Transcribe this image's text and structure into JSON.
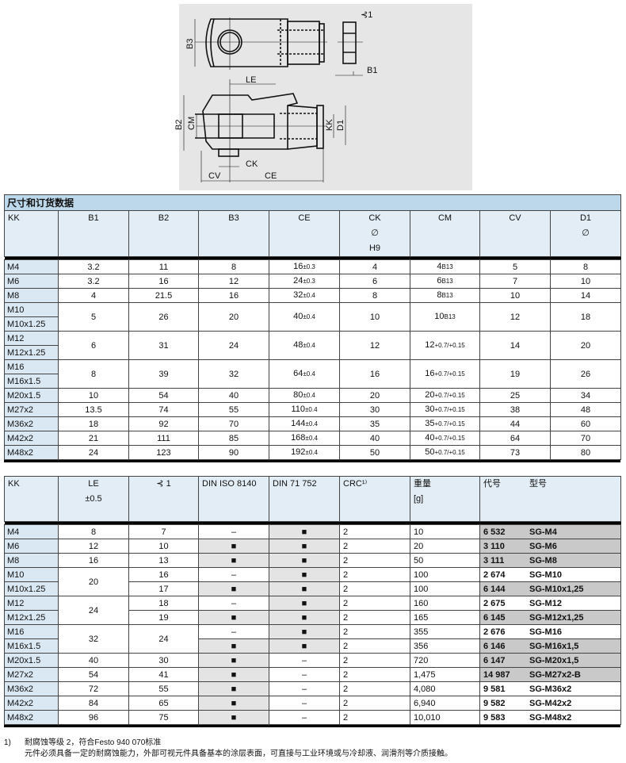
{
  "drawing": {
    "labels": {
      "b3": "B3",
      "b1": "B1",
      "sw": "⊰1",
      "le": "LE",
      "b2": "B2",
      "cm": "CM",
      "kk": "KK",
      "d1": "D1",
      "ck": "CK",
      "cv": "CV",
      "ce": "CE"
    },
    "background": "#e6e6e6"
  },
  "table1": {
    "title": "尺寸和订货数据",
    "headers": [
      [
        "KK"
      ],
      [
        "B1"
      ],
      [
        "B2"
      ],
      [
        "B3"
      ],
      [
        "CE"
      ],
      [
        "CK",
        "∅",
        "H9"
      ],
      [
        "CM"
      ],
      [
        "CV"
      ],
      [
        "D1",
        "∅"
      ]
    ],
    "rows": [
      [
        "M4",
        "3.2",
        "11",
        "8",
        [
          "16",
          "±0.3"
        ],
        "4",
        [
          "4",
          "B13"
        ],
        "5",
        "8"
      ],
      [
        "M6",
        "3.2",
        "16",
        "12",
        [
          "24",
          "±0.3"
        ],
        "6",
        [
          "6",
          "B13"
        ],
        "7",
        "10"
      ],
      [
        "M8",
        "4",
        "21.5",
        "16",
        [
          "32",
          "±0.4"
        ],
        "8",
        [
          "8",
          "B13"
        ],
        "10",
        "14"
      ],
      [
        "M10",
        "5",
        "26",
        "20",
        [
          "40",
          "±0.4"
        ],
        "10",
        [
          "10",
          "B13"
        ],
        "12",
        "18"
      ],
      [
        "M10x1.25",
        null,
        null,
        null,
        null,
        null,
        null,
        null,
        null
      ],
      [
        "M12",
        "6",
        "31",
        "24",
        [
          "48",
          "±0.4"
        ],
        "12",
        [
          "12",
          "+0.7/+0.15"
        ],
        "14",
        "20"
      ],
      [
        "M12x1.25",
        null,
        null,
        null,
        null,
        null,
        null,
        null,
        null
      ],
      [
        "M16",
        "8",
        "39",
        "32",
        [
          "64",
          "±0.4"
        ],
        "16",
        [
          "16",
          "+0.7/+0.15"
        ],
        "19",
        "26"
      ],
      [
        "M16x1.5",
        null,
        null,
        null,
        null,
        null,
        null,
        null,
        null
      ],
      [
        "M20x1.5",
        "10",
        "54",
        "40",
        [
          "80",
          "±0.4"
        ],
        "20",
        [
          "20",
          "+0.7/+0.15"
        ],
        "25",
        "34"
      ],
      [
        "M27x2",
        "13.5",
        "74",
        "55",
        [
          "110",
          "±0.4"
        ],
        "30",
        [
          "30",
          "+0.7/+0.15"
        ],
        "38",
        "48"
      ],
      [
        "M36x2",
        "18",
        "92",
        "70",
        [
          "144",
          "±0.4"
        ],
        "35",
        [
          "35",
          "+0.7/+0.15"
        ],
        "44",
        "60"
      ],
      [
        "M42x2",
        "21",
        "111",
        "85",
        [
          "168",
          "±0.4"
        ],
        "40",
        [
          "40",
          "+0.7/+0.15"
        ],
        "64",
        "70"
      ],
      [
        "M48x2",
        "24",
        "123",
        "90",
        [
          "192",
          "±0.4"
        ],
        "50",
        [
          "50",
          "+0.7/+0.15"
        ],
        "73",
        "80"
      ]
    ]
  },
  "table2": {
    "headers": [
      [
        "KK"
      ],
      [
        "LE",
        "",
        "±0.5"
      ],
      [
        "⊰ 1"
      ],
      [
        "DIN ISO 8140"
      ],
      [
        "DIN 71 752"
      ],
      [
        "CRC¹⁾"
      ],
      [
        "重量",
        "",
        "[g]"
      ],
      [
        "代号",
        "型号"
      ]
    ],
    "rows": [
      [
        "M4",
        "8",
        "7",
        "–",
        "■",
        "2",
        "10",
        "6 532",
        "SG-M4",
        true
      ],
      [
        "M6",
        "12",
        "10",
        "■",
        "■",
        "2",
        "20",
        "3 110",
        "SG-M6",
        true
      ],
      [
        "M8",
        "16",
        "13",
        "■",
        "■",
        "2",
        "50",
        "3 111",
        "SG-M8",
        true
      ],
      [
        "M10",
        "20",
        "16",
        "–",
        "■",
        "2",
        "100",
        "2 674",
        "SG-M10",
        false
      ],
      [
        "M10x1.25",
        null,
        "17",
        "■",
        "■",
        "2",
        "100",
        "6 144",
        "SG-M10x1,25",
        true
      ],
      [
        "M12",
        "24",
        "18",
        "–",
        "■",
        "2",
        "160",
        "2 675",
        "SG-M12",
        false
      ],
      [
        "M12x1.25",
        null,
        "19",
        "■",
        "■",
        "2",
        "165",
        "6 145",
        "SG-M12x1,25",
        true
      ],
      [
        "M16",
        "32",
        "24",
        "–",
        "■",
        "2",
        "355",
        "2 676",
        "SG-M16",
        false
      ],
      [
        "M16x1.5",
        null,
        null,
        "■",
        "■",
        "2",
        "356",
        "6 146",
        "SG-M16x1,5",
        true
      ],
      [
        "M20x1.5",
        "40",
        "30",
        "■",
        "–",
        "2",
        "720",
        "6 147",
        "SG-M20x1,5",
        true
      ],
      [
        "M27x2",
        "54",
        "41",
        "■",
        "–",
        "2",
        "1,475",
        "14 987",
        "SG-M27x2-B",
        true
      ],
      [
        "M36x2",
        "72",
        "55",
        "■",
        "–",
        "2",
        "4,080",
        "9 581",
        "SG-M36x2",
        false
      ],
      [
        "M42x2",
        "84",
        "65",
        "■",
        "–",
        "2",
        "6,940",
        "9 582",
        "SG-M42x2",
        false
      ],
      [
        "M48x2",
        "96",
        "75",
        "■",
        "–",
        "2",
        "10,010",
        "9 583",
        "SG-M48x2",
        false
      ]
    ]
  },
  "footnote": {
    "marker": "1)",
    "line1": "耐腐蚀等级 2，符合Festo 940 070标准",
    "line2": "元件必须具备一定的耐腐蚀能力，外部可视元件具备基本的涂层表面，可直接与工业环境或与冷却液、润滑剂等介质接触。"
  },
  "colors": {
    "kk_column": "#dae8f3",
    "header": "#e3edf5",
    "title_bar": "#bcd8ea",
    "marked_cell": "#e4e4e4",
    "order_code_highlight": "#c9c9c9"
  }
}
